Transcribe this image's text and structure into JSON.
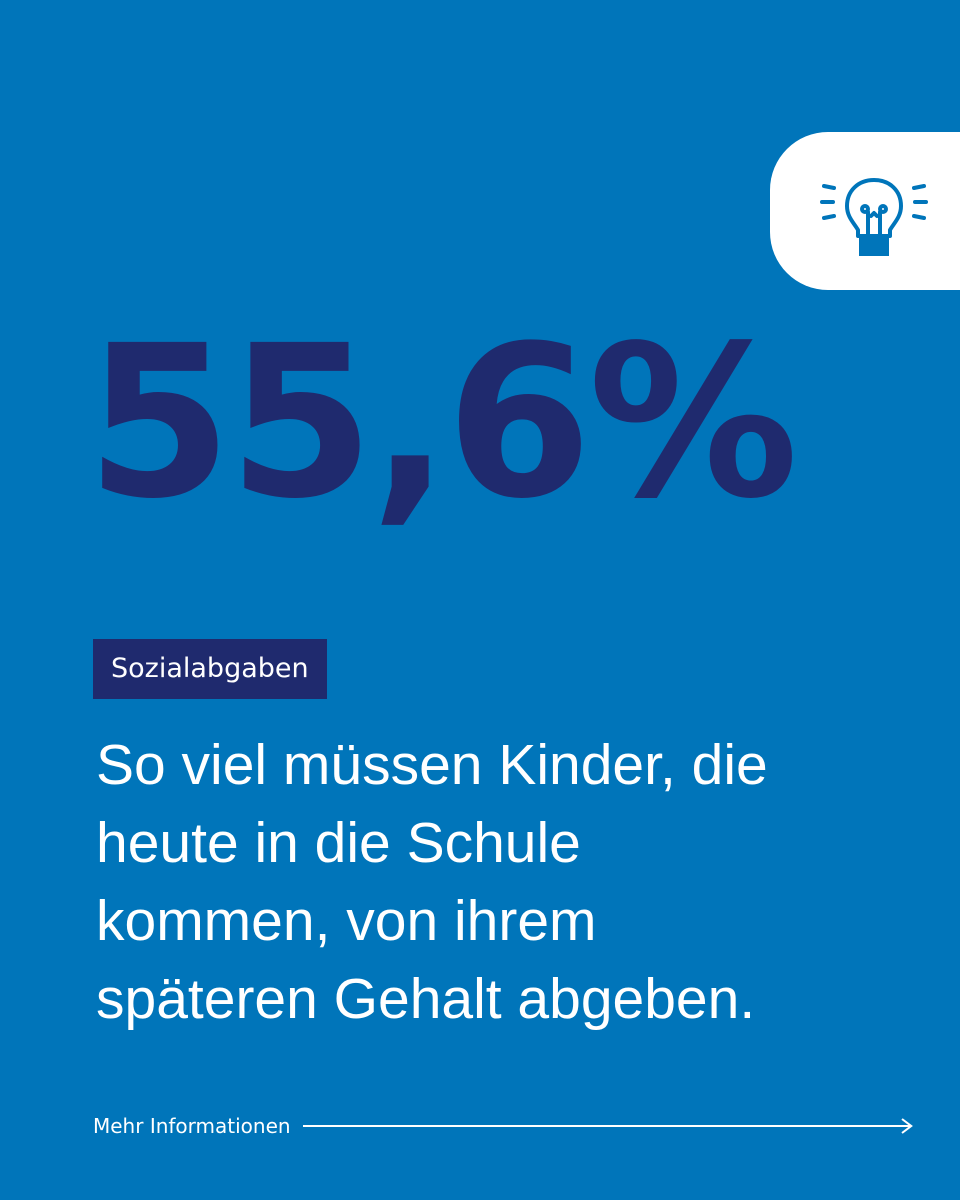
{
  "colors": {
    "background": "#0075BA",
    "accent_dark": "#1F2A6E",
    "text_light": "#FFFFFF"
  },
  "icon": {
    "name": "lightbulb-icon"
  },
  "statistic": {
    "value": "55,6%"
  },
  "tag": {
    "label": "Sozialabgaben"
  },
  "description": {
    "lines": [
      "So viel müssen Kinder, die",
      "heute in die Schule",
      "kommen, von ihrem",
      "späteren Gehalt abgeben."
    ]
  },
  "footer": {
    "link_label": "Mehr Informationen",
    "arrow_icon": "arrow-right-icon"
  }
}
